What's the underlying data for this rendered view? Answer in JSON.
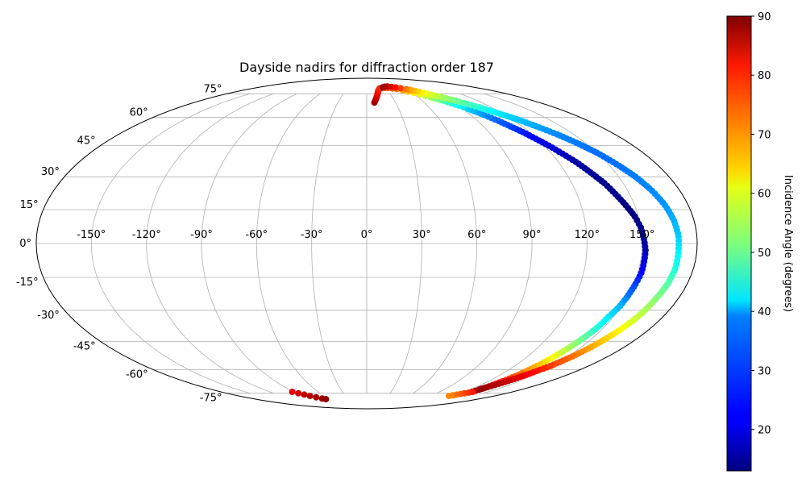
{
  "chart_data": {
    "type": "scatter",
    "projection": "mollweide",
    "title": "Dayside nadirs for diffraction order 187",
    "grid": true,
    "xticks": [
      "-150°",
      "-120°",
      "-90°",
      "-60°",
      "-30°",
      "0°",
      "30°",
      "60°",
      "90°",
      "120°",
      "150°"
    ],
    "yticks": [
      "75°",
      "60°",
      "45°",
      "30°",
      "15°",
      "0°",
      "-15°",
      "-30°",
      "-45°",
      "-60°",
      "-75°"
    ],
    "xlim": [
      -180,
      180
    ],
    "ylim": [
      -90,
      90
    ],
    "colorbar": {
      "label": "Incidence Angle (degrees)",
      "colormap": "jet",
      "range": [
        13,
        90
      ],
      "ticks": [
        "90",
        "80",
        "70",
        "60",
        "50",
        "40",
        "30",
        "20"
      ]
    },
    "series": [
      {
        "points": [
          {
            "lon": 8,
            "lat": 69,
            "c": 88
          },
          {
            "lon": 9,
            "lat": 70,
            "c": 87
          },
          {
            "lon": 10,
            "lat": 71,
            "c": 86
          },
          {
            "lon": 11,
            "lat": 72,
            "c": 85
          },
          {
            "lon": 12,
            "lat": 73,
            "c": 84
          },
          {
            "lon": 13,
            "lat": 74,
            "c": 83
          },
          {
            "lon": 14,
            "lat": 75,
            "c": 82
          },
          {
            "lon": 15,
            "lat": 76,
            "c": 81
          },
          {
            "lon": 16,
            "lat": 77,
            "c": 80
          },
          {
            "lon": 18,
            "lat": 78,
            "c": 79
          },
          {
            "lon": 20,
            "lat": 79,
            "c": 78
          },
          {
            "lon": 24,
            "lat": 79.3,
            "c": 77
          },
          {
            "lon": 29,
            "lat": 79.5,
            "c": 76
          },
          {
            "lon": 34,
            "lat": 79.4,
            "c": 75
          },
          {
            "lon": 40,
            "lat": 79,
            "c": 73
          },
          {
            "lon": 46,
            "lat": 78.5,
            "c": 71
          },
          {
            "lon": 52,
            "lat": 77.5,
            "c": 68
          },
          {
            "lon": 57,
            "lat": 76.5,
            "c": 65
          },
          {
            "lon": 62,
            "lat": 75.5,
            "c": 62
          },
          {
            "lon": 67,
            "lat": 74.5,
            "c": 60
          },
          {
            "lon": 71,
            "lat": 73.5,
            "c": 57
          },
          {
            "lon": 75,
            "lat": 72.5,
            "c": 54
          },
          {
            "lon": 79,
            "lat": 71.3,
            "c": 51
          },
          {
            "lon": 83,
            "lat": 70,
            "c": 48
          },
          {
            "lon": 87,
            "lat": 68.5,
            "c": 45
          },
          {
            "lon": 91,
            "lat": 67,
            "c": 42
          },
          {
            "lon": 95,
            "lat": 65,
            "c": 39
          },
          {
            "lon": 99,
            "lat": 63,
            "c": 36
          },
          {
            "lon": 103,
            "lat": 60.5,
            "c": 33
          },
          {
            "lon": 107,
            "lat": 58,
            "c": 30
          },
          {
            "lon": 111,
            "lat": 55,
            "c": 28
          },
          {
            "lon": 115,
            "lat": 52,
            "c": 25
          },
          {
            "lon": 119,
            "lat": 48.5,
            "c": 22
          },
          {
            "lon": 123,
            "lat": 45,
            "c": 20
          },
          {
            "lon": 127,
            "lat": 41,
            "c": 18
          },
          {
            "lon": 131,
            "lat": 37,
            "c": 16
          },
          {
            "lon": 135,
            "lat": 32,
            "c": 15
          },
          {
            "lon": 139,
            "lat": 27,
            "c": 14
          },
          {
            "lon": 142,
            "lat": 22,
            "c": 14
          },
          {
            "lon": 145,
            "lat": 17,
            "c": 13
          },
          {
            "lon": 148,
            "lat": 12,
            "c": 13
          },
          {
            "lon": 150,
            "lat": 7,
            "c": 14
          },
          {
            "lon": 151,
            "lat": 2,
            "c": 15
          },
          {
            "lon": 152,
            "lat": -3,
            "c": 17
          },
          {
            "lon": 152,
            "lat": -8,
            "c": 20
          },
          {
            "lon": 152,
            "lat": -13,
            "c": 23
          },
          {
            "lon": 151,
            "lat": -18,
            "c": 27
          },
          {
            "lon": 150,
            "lat": -23,
            "c": 31
          },
          {
            "lon": 149,
            "lat": -28,
            "c": 36
          },
          {
            "lon": 147,
            "lat": -33,
            "c": 40
          },
          {
            "lon": 146,
            "lat": -38,
            "c": 44
          },
          {
            "lon": 144,
            "lat": -43,
            "c": 49
          },
          {
            "lon": 142,
            "lat": -48,
            "c": 54
          },
          {
            "lon": 140,
            "lat": -53,
            "c": 60
          },
          {
            "lon": 138,
            "lat": -58,
            "c": 66
          },
          {
            "lon": 136,
            "lat": -63,
            "c": 72
          },
          {
            "lon": 134,
            "lat": -67,
            "c": 78
          },
          {
            "lon": 132,
            "lat": -71,
            "c": 84
          },
          {
            "lon": 130,
            "lat": -74,
            "c": 89
          },
          {
            "lon": 27,
            "lat": 80,
            "c": 89
          },
          {
            "lon": 31,
            "lat": 80.5,
            "c": 88
          },
          {
            "lon": 36,
            "lat": 80.6,
            "c": 86
          },
          {
            "lon": 42,
            "lat": 80.3,
            "c": 83
          },
          {
            "lon": 48,
            "lat": 79.8,
            "c": 80
          },
          {
            "lon": 54,
            "lat": 79.2,
            "c": 76
          },
          {
            "lon": 60,
            "lat": 78.4,
            "c": 72
          },
          {
            "lon": 66,
            "lat": 77.4,
            "c": 68
          },
          {
            "lon": 72,
            "lat": 76.3,
            "c": 64
          },
          {
            "lon": 78,
            "lat": 75,
            "c": 60
          },
          {
            "lon": 84,
            "lat": 73.6,
            "c": 57
          },
          {
            "lon": 90,
            "lat": 72,
            "c": 54
          },
          {
            "lon": 96,
            "lat": 70.2,
            "c": 51
          },
          {
            "lon": 102,
            "lat": 68.2,
            "c": 48
          },
          {
            "lon": 108,
            "lat": 66,
            "c": 45
          },
          {
            "lon": 114,
            "lat": 63.5,
            "c": 42
          },
          {
            "lon": 120,
            "lat": 60.8,
            "c": 39
          },
          {
            "lon": 126,
            "lat": 57.8,
            "c": 37
          },
          {
            "lon": 132,
            "lat": 54.5,
            "c": 35
          },
          {
            "lon": 138,
            "lat": 50.8,
            "c": 33
          },
          {
            "lon": 144,
            "lat": 46.5,
            "c": 32
          },
          {
            "lon": 150,
            "lat": 41.5,
            "c": 31
          },
          {
            "lon": 155,
            "lat": 36,
            "c": 31
          },
          {
            "lon": 160,
            "lat": 30,
            "c": 32
          },
          {
            "lon": 164,
            "lat": 23.5,
            "c": 33
          },
          {
            "lon": 167,
            "lat": 17,
            "c": 34
          },
          {
            "lon": 169,
            "lat": 10,
            "c": 36
          },
          {
            "lon": 170,
            "lat": 3,
            "c": 38
          },
          {
            "lon": 170,
            "lat": -4,
            "c": 41
          },
          {
            "lon": 170,
            "lat": -11,
            "c": 44
          },
          {
            "lon": 169,
            "lat": -18,
            "c": 48
          },
          {
            "lon": 167,
            "lat": -25,
            "c": 52
          },
          {
            "lon": 165,
            "lat": -32,
            "c": 56
          },
          {
            "lon": 162,
            "lat": -39,
            "c": 61
          },
          {
            "lon": 158,
            "lat": -46,
            "c": 66
          },
          {
            "lon": 154,
            "lat": -52,
            "c": 71
          },
          {
            "lon": 149,
            "lat": -58,
            "c": 76
          },
          {
            "lon": 143,
            "lat": -63,
            "c": 81
          },
          {
            "lon": 137,
            "lat": -68,
            "c": 85
          },
          {
            "lon": 131,
            "lat": -72,
            "c": 88
          },
          {
            "lon": 116,
            "lat": -77,
            "c": 70
          },
          {
            "lon": 121,
            "lat": -76,
            "c": 72
          },
          {
            "lon": 126,
            "lat": -75,
            "c": 75
          },
          {
            "lon": 131,
            "lat": -74,
            "c": 78
          },
          {
            "lon": -92,
            "lat": -74,
            "c": 82
          },
          {
            "lon": -88,
            "lat": -75,
            "c": 84
          },
          {
            "lon": -84,
            "lat": -76,
            "c": 85
          },
          {
            "lon": -80,
            "lat": -77,
            "c": 86
          },
          {
            "lon": -75,
            "lat": -78,
            "c": 87
          },
          {
            "lon": -70,
            "lat": -79,
            "c": 88
          },
          {
            "lon": -66,
            "lat": -79.5,
            "c": 89
          }
        ]
      }
    ]
  }
}
